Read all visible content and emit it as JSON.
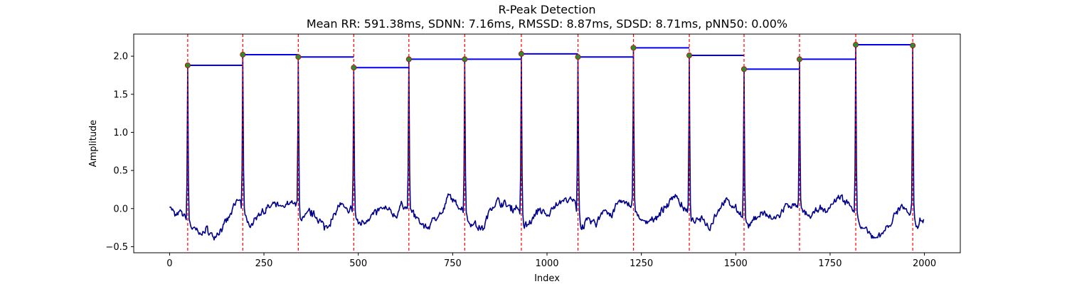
{
  "chart_data": {
    "type": "line",
    "title": "R-Peak Detection",
    "subtitle": "Mean RR: 591.38ms, SDNN: 7.16ms, RMSSD: 8.87ms, SDSD: 8.71ms, pNN50: 0.00%",
    "xlabel": "Index",
    "ylabel": "Amplitude",
    "xlim": [
      -95,
      2095
    ],
    "ylim": [
      -0.58,
      2.29
    ],
    "x_ticks": [
      0,
      250,
      500,
      750,
      1000,
      1250,
      1500,
      1750,
      2000
    ],
    "y_ticks": [
      -0.5,
      0.0,
      0.5,
      1.0,
      1.5,
      2.0
    ],
    "x_tick_labels": [
      "0",
      "250",
      "500",
      "750",
      "1000",
      "1250",
      "1500",
      "1750",
      "2000"
    ],
    "y_tick_labels": [
      "−0.5",
      "0.0",
      "0.5",
      "1.0",
      "1.5",
      "2.0"
    ],
    "grid": false,
    "signal": {
      "color": "#00008b",
      "x_start": 0,
      "x_end": 1999,
      "baseline_points": [
        [
          0,
          0.05
        ],
        [
          15,
          -0.1
        ],
        [
          30,
          -0.05
        ],
        [
          45,
          -0.12
        ],
        [
          60,
          -0.25
        ],
        [
          80,
          -0.33
        ],
        [
          100,
          -0.28
        ],
        [
          120,
          -0.38
        ],
        [
          140,
          -0.25
        ],
        [
          160,
          -0.1
        ],
        [
          180,
          0.12
        ],
        [
          190,
          0.08
        ],
        [
          205,
          -0.2
        ],
        [
          220,
          -0.18
        ],
        [
          240,
          -0.05
        ],
        [
          260,
          0.0
        ],
        [
          280,
          0.05
        ],
        [
          300,
          0.0
        ],
        [
          320,
          0.1
        ],
        [
          335,
          0.05
        ],
        [
          350,
          -0.15
        ],
        [
          370,
          -0.05
        ],
        [
          390,
          -0.1
        ],
        [
          410,
          -0.25
        ],
        [
          430,
          -0.15
        ],
        [
          450,
          0.05
        ],
        [
          470,
          -0.03
        ],
        [
          485,
          0.0
        ],
        [
          500,
          -0.2
        ],
        [
          520,
          -0.15
        ],
        [
          540,
          -0.08
        ],
        [
          560,
          0.0
        ],
        [
          580,
          -0.02
        ],
        [
          600,
          -0.1
        ],
        [
          615,
          0.05
        ],
        [
          630,
          0.02
        ],
        [
          645,
          -0.05
        ],
        [
          665,
          -0.2
        ],
        [
          685,
          -0.25
        ],
        [
          705,
          -0.1
        ],
        [
          725,
          -0.05
        ],
        [
          740,
          0.18
        ],
        [
          760,
          0.05
        ],
        [
          778,
          0.0
        ],
        [
          792,
          -0.18
        ],
        [
          810,
          -0.2
        ],
        [
          830,
          -0.28
        ],
        [
          850,
          0.0
        ],
        [
          870,
          0.1
        ],
        [
          890,
          0.05
        ],
        [
          910,
          0.0
        ],
        [
          928,
          0.02
        ],
        [
          940,
          -0.25
        ],
        [
          960,
          -0.15
        ],
        [
          980,
          0.0
        ],
        [
          1000,
          -0.12
        ],
        [
          1020,
          0.05
        ],
        [
          1040,
          0.1
        ],
        [
          1060,
          0.12
        ],
        [
          1078,
          0.05
        ],
        [
          1092,
          -0.25
        ],
        [
          1110,
          -0.15
        ],
        [
          1130,
          -0.2
        ],
        [
          1150,
          0.0
        ],
        [
          1170,
          -0.1
        ],
        [
          1190,
          0.1
        ],
        [
          1210,
          0.05
        ],
        [
          1226,
          0.05
        ],
        [
          1240,
          -0.1
        ],
        [
          1260,
          -0.2
        ],
        [
          1280,
          -0.15
        ],
        [
          1300,
          -0.05
        ],
        [
          1320,
          0.05
        ],
        [
          1340,
          0.2
        ],
        [
          1360,
          0.0
        ],
        [
          1374,
          -0.05
        ],
        [
          1390,
          -0.2
        ],
        [
          1410,
          -0.1
        ],
        [
          1430,
          -0.25
        ],
        [
          1450,
          -0.05
        ],
        [
          1470,
          0.1
        ],
        [
          1490,
          0.05
        ],
        [
          1510,
          -0.05
        ],
        [
          1520,
          -0.1
        ],
        [
          1535,
          -0.25
        ],
        [
          1555,
          -0.1
        ],
        [
          1575,
          -0.05
        ],
        [
          1595,
          -0.15
        ],
        [
          1615,
          -0.1
        ],
        [
          1635,
          0.05
        ],
        [
          1650,
          0.03
        ],
        [
          1665,
          0.02
        ],
        [
          1680,
          -0.05
        ],
        [
          1700,
          -0.1
        ],
        [
          1720,
          0.0
        ],
        [
          1740,
          -0.05
        ],
        [
          1760,
          0.1
        ],
        [
          1780,
          0.15
        ],
        [
          1800,
          0.05
        ],
        [
          1815,
          0.0
        ],
        [
          1830,
          -0.25
        ],
        [
          1850,
          -0.3
        ],
        [
          1870,
          -0.42
        ],
        [
          1890,
          -0.3
        ],
        [
          1910,
          -0.2
        ],
        [
          1925,
          -0.05
        ],
        [
          1940,
          0.05
        ],
        [
          1960,
          -0.1
        ],
        [
          1968,
          -0.05
        ],
        [
          1980,
          -0.22
        ],
        [
          1990,
          -0.15
        ],
        [
          1999,
          -0.12
        ]
      ]
    },
    "r_peaks": {
      "marker_color": "#2e8b2e",
      "marker_edge": "#cc0000",
      "vline_color": "#ff0000",
      "indices": [
        48,
        194,
        341,
        488,
        634,
        782,
        932,
        1082,
        1229,
        1377,
        1522,
        1669,
        1818,
        1969
      ],
      "amplitudes": [
        1.88,
        2.02,
        1.99,
        1.85,
        1.96,
        1.96,
        2.03,
        1.99,
        2.11,
        2.01,
        1.83,
        1.96,
        2.15,
        2.14
      ]
    },
    "rr_segments": {
      "color": "#0000ee"
    }
  }
}
